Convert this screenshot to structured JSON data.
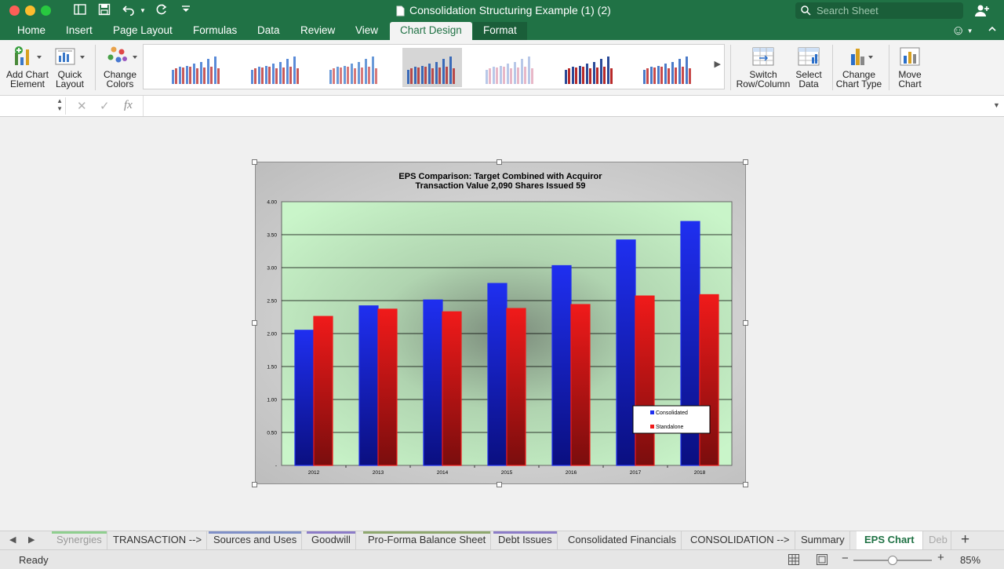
{
  "window": {
    "title": "Consolidation Structuring Example (1) (2)",
    "search_placeholder": "Search Sheet"
  },
  "ribbon_tabs": [
    "Home",
    "Insert",
    "Page Layout",
    "Formulas",
    "Data",
    "Review",
    "View",
    "Chart Design",
    "Format"
  ],
  "active_tab": "Chart Design",
  "ribbon": {
    "add_chart_element": [
      "Add Chart",
      "Element"
    ],
    "quick_layout": [
      "Quick",
      "Layout"
    ],
    "change_colors": [
      "Change",
      "Colors"
    ],
    "switch_row_column": [
      "Switch",
      "Row/Column"
    ],
    "select_data": [
      "Select",
      "Data"
    ],
    "change_chart_type": [
      "Change",
      "Chart Type"
    ],
    "move_chart": [
      "Move",
      "Chart"
    ]
  },
  "formula_bar": {
    "fx": "fx",
    "name_box": "",
    "formula": ""
  },
  "chart_data": {
    "type": "bar",
    "title": "EPS Comparison: Target Combined with Acquiror",
    "subtitle": "Transaction Value 2,090 Shares Issued 59",
    "categories": [
      "2012",
      "2013",
      "2014",
      "2015",
      "2016",
      "2017",
      "2018"
    ],
    "series": [
      {
        "name": "Consolidated",
        "values": [
          2.05,
          2.42,
          2.51,
          2.76,
          3.03,
          3.42,
          3.7
        ],
        "color": "#1f2ff0"
      },
      {
        "name": "Standalone",
        "values": [
          2.26,
          2.37,
          2.33,
          2.38,
          2.44,
          2.57,
          2.59
        ],
        "color": "#f01a1a"
      }
    ],
    "y_ticks": [
      "4.00",
      "3.50",
      "3.00",
      "2.50",
      "2.00",
      "1.50",
      "1.00",
      "0.50",
      "-"
    ],
    "ylim": [
      0,
      4
    ],
    "plot_background": "#c9f5c9",
    "legend_position": "bottom-right",
    "grid": true
  },
  "sheet_tabs": [
    {
      "label": "Synergies",
      "strip": "#8fcf8f"
    },
    {
      "label": "TRANSACTION -->",
      "strip": ""
    },
    {
      "label": "Sources and Uses",
      "strip": "#8090c8"
    },
    {
      "label": "Goodwill",
      "strip": "#8c7cc8"
    },
    {
      "label": "Pro-Forma Balance Sheet",
      "strip": "#8fa86f"
    },
    {
      "label": "Debt Issues",
      "strip": "#8c7cc8"
    },
    {
      "label": "Consolidated Financials",
      "strip": ""
    },
    {
      "label": "CONSOLIDATION -->",
      "strip": ""
    },
    {
      "label": "Summary",
      "strip": ""
    },
    {
      "label": "EPS Chart",
      "strip": ""
    },
    {
      "label": "Deb",
      "strip": ""
    }
  ],
  "active_sheet": "EPS Chart",
  "status": {
    "state": "Ready",
    "zoom": "85%",
    "zoom_level": 0.5
  },
  "colors": {
    "brand": "#207245"
  }
}
